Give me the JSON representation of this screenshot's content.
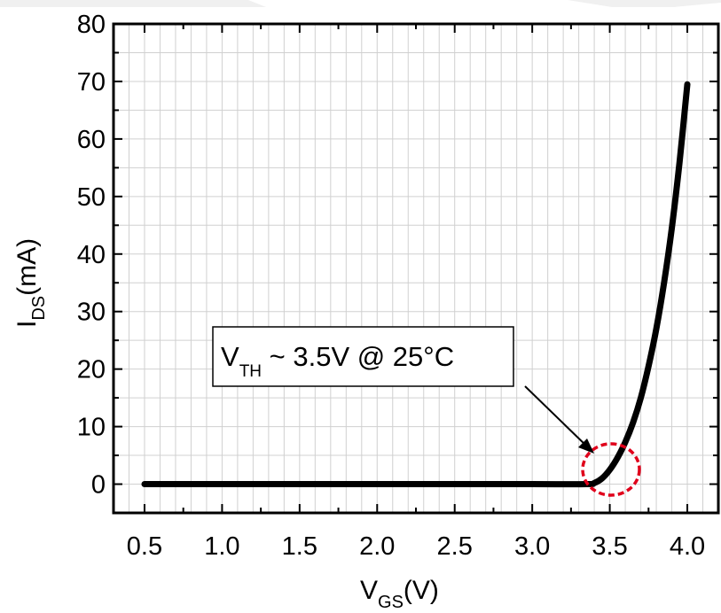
{
  "chart_data": {
    "type": "line",
    "x_axis": {
      "label_main": "V",
      "label_sub": "GS",
      "label_unit": "(V)",
      "range": [
        0.3,
        4.2
      ],
      "ticks": [
        "0.5",
        "1.0",
        "1.5",
        "2.0",
        "2.5",
        "3.0",
        "3.5",
        "4.0"
      ],
      "tick_values": [
        0.5,
        1.0,
        1.5,
        2.0,
        2.5,
        3.0,
        3.5,
        4.0
      ],
      "minor_step": 0.1
    },
    "y_axis": {
      "label_main": "I",
      "label_sub": "DS",
      "label_unit": "(mA)",
      "range": [
        -5,
        80
      ],
      "ticks": [
        "0",
        "10",
        "20",
        "30",
        "40",
        "50",
        "60",
        "70",
        "80"
      ],
      "tick_values": [
        0,
        10,
        20,
        30,
        40,
        50,
        60,
        70,
        80
      ],
      "minor_step": 5
    },
    "grid": true,
    "colors": {
      "curve": "#000000",
      "grid": "#d0d0d0",
      "circle": "#e0001b"
    },
    "series": [
      {
        "x": [
          0.5,
          1.0,
          1.5,
          2.0,
          2.5,
          3.0,
          3.35,
          3.4,
          3.45,
          3.5,
          3.55,
          3.6,
          3.65,
          3.7,
          3.75,
          3.8,
          3.85,
          3.9,
          3.95,
          4.0
        ],
        "y": [
          0,
          0,
          0,
          0,
          0,
          0,
          0,
          0.2,
          1.0,
          2.5,
          4.6,
          7.3,
          10.7,
          15.0,
          20.5,
          27.0,
          35.0,
          44.5,
          56.0,
          69.5
        ]
      }
    ],
    "annotation": {
      "text_main": "V",
      "text_sub": "TH",
      "text_rest": " ~ 3.5V @ 25°C",
      "target": [
        3.5,
        2
      ]
    }
  }
}
